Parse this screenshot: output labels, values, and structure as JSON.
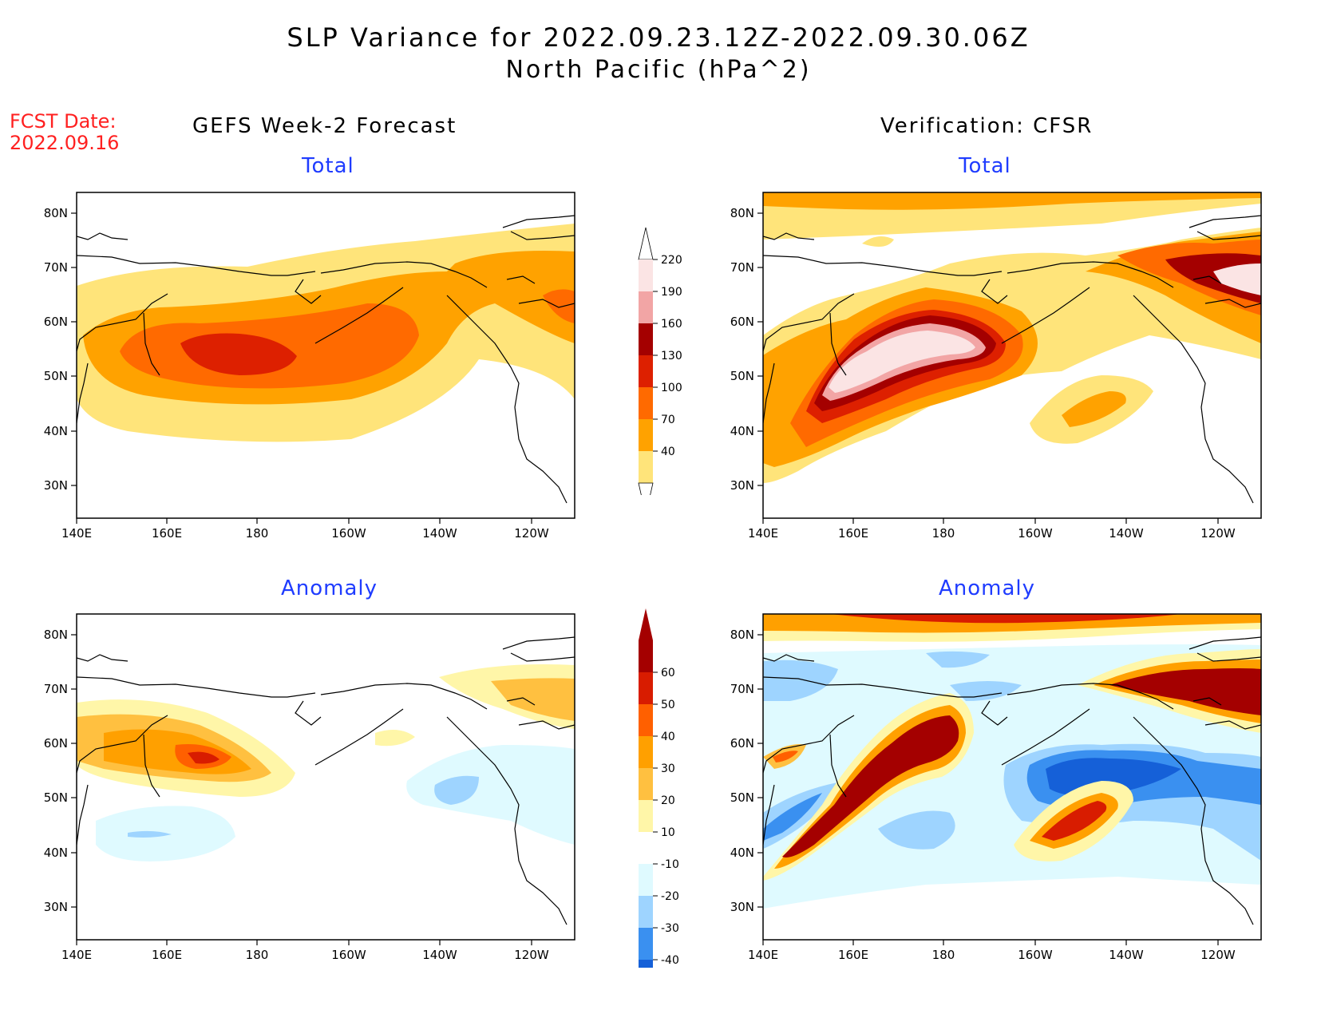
{
  "header": {
    "title_line1": "SLP Variance for 2022.09.23.12Z-2022.09.30.06Z",
    "title_line2": "North Pacific (hPa^2)"
  },
  "fcst": {
    "label": "FCST Date:",
    "date": "2022.09.16"
  },
  "columns": {
    "left_title": "GEFS Week-2 Forecast",
    "right_title": "Verification: CFSR"
  },
  "panels": {
    "total_label": "Total",
    "anomaly_label": "Anomaly"
  },
  "axes": {
    "lon_ticks": [
      "140E",
      "160E",
      "180",
      "160W",
      "140W",
      "120W"
    ],
    "lat_ticks": [
      "80N",
      "70N",
      "60N",
      "50N",
      "40N",
      "30N"
    ]
  },
  "colorbar_total": {
    "levels": [
      "220",
      "190",
      "160",
      "130",
      "100",
      "70",
      "40"
    ],
    "colors": [
      "#fbe4e4",
      "#f2a5a5",
      "#a40000",
      "#dd2000",
      "#ff6a00",
      "#ffa200",
      "#ffe47a"
    ]
  },
  "colorbar_anomaly": {
    "levels": [
      "60",
      "50",
      "40",
      "30",
      "20",
      "10",
      "-10",
      "-20",
      "-30",
      "-40"
    ],
    "colors": [
      "#a40000",
      "#d81c00",
      "#ff6000",
      "#ffa000",
      "#ffc040",
      "#fff6a8",
      "#ffffff",
      "#dffaff",
      "#9ed4ff",
      "#3a90f0",
      "#1560d8"
    ]
  }
}
